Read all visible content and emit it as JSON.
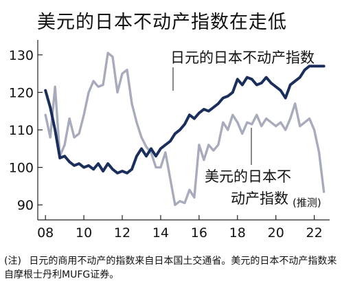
{
  "chart_data": {
    "type": "line",
    "title": "美元的日本不动产指数在走低",
    "x_tick_labels": [
      "08",
      "10",
      "12",
      "14",
      "16",
      "18",
      "20",
      "22"
    ],
    "x_tick_values": [
      2008,
      2010,
      2012,
      2014,
      2016,
      2018,
      2020,
      2022
    ],
    "y_tick_values": [
      90,
      100,
      110,
      120,
      130
    ],
    "xlim": [
      2007.6,
      2022.8
    ],
    "ylim": [
      86,
      134
    ],
    "grid": false,
    "series": [
      {
        "name": "日元的日本不动产指数",
        "color": "#1a2e5c",
        "x": [
          2008.0,
          2008.25,
          2008.5,
          2008.75,
          2009.0,
          2009.25,
          2009.5,
          2009.75,
          2010.0,
          2010.25,
          2010.5,
          2010.75,
          2011.0,
          2011.25,
          2011.5,
          2011.75,
          2012.0,
          2012.25,
          2012.5,
          2012.75,
          2013.0,
          2013.25,
          2013.5,
          2013.75,
          2014.0,
          2014.25,
          2014.5,
          2014.75,
          2015.0,
          2015.25,
          2015.5,
          2015.75,
          2016.0,
          2016.25,
          2016.5,
          2016.75,
          2017.0,
          2017.25,
          2017.5,
          2017.75,
          2018.0,
          2018.25,
          2018.5,
          2018.75,
          2019.0,
          2019.25,
          2019.5,
          2019.75,
          2020.0,
          2020.25,
          2020.5,
          2020.75,
          2021.0,
          2021.25,
          2021.5,
          2021.75,
          2022.0,
          2022.25,
          2022.5
        ],
        "values": [
          120.5,
          116,
          110,
          102.5,
          103,
          101.5,
          100.5,
          101,
          100,
          100.5,
          99.5,
          101,
          99,
          101,
          99.5,
          98.5,
          99,
          98.5,
          99.5,
          103,
          105,
          103,
          105,
          103,
          105,
          106,
          107,
          109,
          110,
          111.5,
          114,
          113,
          114.5,
          115.5,
          115,
          116,
          117,
          118.5,
          119,
          120,
          123.5,
          122,
          124,
          123.5,
          122,
          122.5,
          124,
          122.5,
          121.5,
          120.5,
          118.5,
          122,
          123,
          124,
          126,
          127,
          127,
          127,
          127
        ]
      },
      {
        "name": "美元的日本不动产指数",
        "qualifier": "(推测)",
        "color": "#a7abbc",
        "x": [
          2008.0,
          2008.25,
          2008.5,
          2008.75,
          2009.0,
          2009.25,
          2009.5,
          2009.75,
          2010.0,
          2010.25,
          2010.5,
          2010.75,
          2011.0,
          2011.25,
          2011.5,
          2011.75,
          2012.0,
          2012.25,
          2012.5,
          2012.75,
          2013.0,
          2013.25,
          2013.5,
          2013.75,
          2014.0,
          2014.25,
          2014.5,
          2014.75,
          2015.0,
          2015.25,
          2015.5,
          2015.75,
          2016.0,
          2016.25,
          2016.5,
          2016.75,
          2017.0,
          2017.25,
          2017.5,
          2017.75,
          2018.0,
          2018.25,
          2018.5,
          2018.75,
          2019.0,
          2019.25,
          2019.5,
          2019.75,
          2020.0,
          2020.25,
          2020.5,
          2020.75,
          2021.0,
          2021.25,
          2021.5,
          2021.75,
          2022.0,
          2022.25,
          2022.5
        ],
        "values": [
          114,
          108,
          121.5,
          103,
          106,
          113,
          108,
          109,
          114,
          120,
          123,
          121.5,
          122,
          130.5,
          129.5,
          120,
          125,
          126,
          117,
          112,
          108,
          105.5,
          104,
          100,
          100,
          104,
          97,
          90,
          91,
          90.5,
          94,
          92,
          106,
          102,
          106,
          104.5,
          106,
          112,
          110,
          114,
          112,
          109,
          112,
          111.5,
          114,
          111,
          113,
          112,
          111,
          112,
          110,
          113,
          117,
          111,
          112,
          113,
          110,
          104,
          93.5
        ]
      }
    ],
    "labels": {
      "yen_series": "日元的日本不动产指数",
      "usd_line1": "美元的日本",
      "usd_line2": "不",
      "usd_line3": "动产指数",
      "estimate": "(推测)"
    },
    "note_head": "(注)",
    "note": "日元的商用不动产的指数来自日本国土交通省。美元的日本不动产指数来自摩根士丹利MUFG证券。"
  }
}
